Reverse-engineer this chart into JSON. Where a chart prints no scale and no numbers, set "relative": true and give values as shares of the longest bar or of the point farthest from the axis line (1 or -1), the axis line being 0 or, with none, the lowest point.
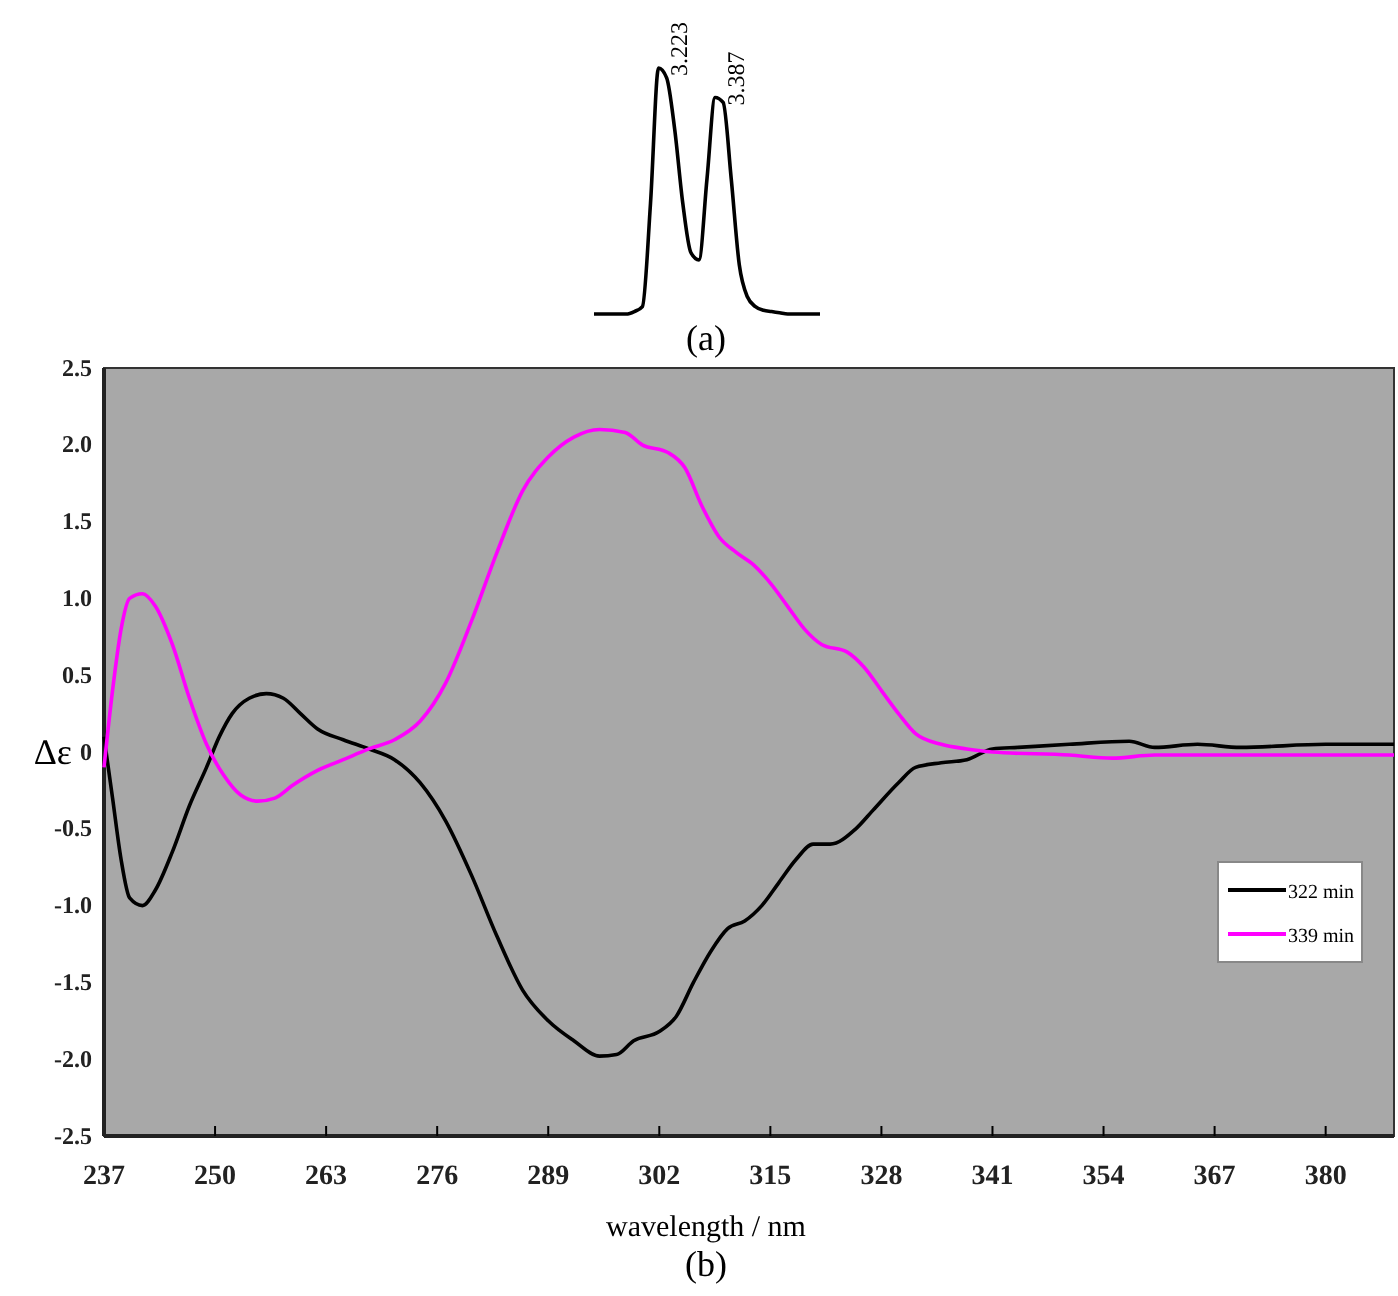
{
  "chart_data": [
    {
      "type": "line",
      "relative": true,
      "xlabel": "(a)",
      "categories": [
        null,
        null,
        null,
        null,
        null,
        null,
        null,
        null,
        null,
        null,
        null,
        null,
        null,
        null,
        null,
        null,
        null,
        null,
        null,
        null,
        null,
        null,
        null,
        null,
        null,
        null,
        null,
        null,
        null
      ],
      "series": [
        {
          "color": "#000000",
          "values": [
            0,
            0,
            0,
            0,
            0,
            0.01,
            0.03,
            0.45,
            1.0,
            0.96,
            0.75,
            0.45,
            0.25,
            0.22,
            0.55,
            0.88,
            0.86,
            0.55,
            0.2,
            0.07,
            0.03,
            0.015,
            0.01,
            0.005,
            0,
            0,
            0,
            0,
            0
          ]
        }
      ],
      "annotations": [
        "3.223",
        "3.387"
      ]
    },
    {
      "type": "line",
      "xlabel": "wavelength / nm",
      "ylabel": "Δε",
      "annotations": [
        "(b)"
      ],
      "legend": "right",
      "grid": false,
      "xlim": [
        237,
        388
      ],
      "xticks": [
        237,
        250,
        263,
        276,
        289,
        302,
        315,
        328,
        341,
        354,
        367,
        380
      ],
      "ylim": [
        -2.5,
        2.5
      ],
      "yticks": [
        {
          "value": -2.5,
          "label": "-2.5"
        },
        {
          "value": -2,
          "label": "-2.0"
        },
        {
          "value": -1.5,
          "label": "-1.5"
        },
        {
          "value": -1,
          "label": "-1.0"
        },
        {
          "value": -0.5,
          "label": "-0.5"
        },
        0,
        0.5,
        {
          "value": 1,
          "label": "1.0"
        },
        1.5,
        {
          "value": 2,
          "label": "2.0"
        },
        2.5
      ],
      "series": [
        {
          "name": "322 min",
          "color": "#000000",
          "x": [
            237,
            238,
            239,
            240,
            241.5,
            243,
            245,
            247,
            249,
            250.5,
            252,
            254,
            256,
            258,
            260,
            262,
            265,
            268,
            271,
            274,
            277,
            280,
            283,
            286,
            289,
            292,
            295,
            297,
            299,
            302,
            304,
            306,
            308,
            310,
            312,
            314,
            316,
            318,
            320,
            322,
            325,
            327,
            330,
            332,
            335,
            338,
            341,
            344,
            350,
            357,
            360,
            365,
            370,
            380,
            388
          ],
          "values": [
            0.1,
            -0.3,
            -0.7,
            -0.95,
            -1.0,
            -0.9,
            -0.65,
            -0.35,
            -0.1,
            0.1,
            0.25,
            0.35,
            0.38,
            0.35,
            0.25,
            0.15,
            0.08,
            0.02,
            -0.05,
            -0.2,
            -0.45,
            -0.8,
            -1.2,
            -1.55,
            -1.75,
            -1.88,
            -1.98,
            -1.97,
            -1.88,
            -1.82,
            -1.72,
            -1.5,
            -1.3,
            -1.15,
            -1.1,
            -1.0,
            -0.85,
            -0.7,
            -0.6,
            -0.6,
            -0.5,
            -0.38,
            -0.2,
            -0.1,
            -0.07,
            -0.05,
            0.02,
            0.03,
            0.05,
            0.07,
            0.03,
            0.05,
            0.03,
            0.05,
            0.05
          ]
        },
        {
          "name": "339 min",
          "color": "#ff00ff",
          "x": [
            237,
            238,
            239,
            240,
            241.5,
            243,
            245,
            247,
            249,
            251,
            253,
            255,
            257,
            259,
            262,
            265,
            268,
            271,
            274,
            277,
            280,
            283,
            286,
            289,
            292,
            295,
            298,
            300,
            303,
            305,
            307,
            309,
            311,
            313,
            315,
            317,
            319,
            321,
            324,
            326,
            328,
            330,
            332,
            335,
            338,
            341,
            350,
            355,
            360,
            388
          ],
          "values": [
            -0.1,
            0.4,
            0.8,
            1.0,
            1.03,
            0.95,
            0.7,
            0.35,
            0.05,
            -0.15,
            -0.28,
            -0.32,
            -0.3,
            -0.22,
            -0.12,
            -0.05,
            0.02,
            0.08,
            0.2,
            0.45,
            0.85,
            1.3,
            1.7,
            1.92,
            2.05,
            2.1,
            2.08,
            2.0,
            1.95,
            1.85,
            1.6,
            1.4,
            1.3,
            1.22,
            1.1,
            0.95,
            0.8,
            0.7,
            0.65,
            0.55,
            0.4,
            0.25,
            0.12,
            0.05,
            0.02,
            0.0,
            -0.02,
            -0.04,
            -0.02,
            -0.02
          ]
        }
      ]
    }
  ]
}
